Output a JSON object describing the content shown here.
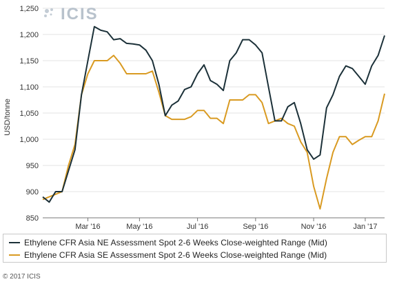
{
  "logo": {
    "text": "ICIS"
  },
  "copyright": "© 2017 ICIS",
  "chart_data": {
    "type": "line",
    "title": "",
    "ylabel": "USD/tonne",
    "xlabel": "",
    "ylim": [
      850,
      1250
    ],
    "yticks": [
      850,
      900,
      950,
      1000,
      1050,
      1100,
      1150,
      1200,
      1250
    ],
    "ytick_labels": [
      "850",
      "900",
      "950",
      "1,000",
      "1,050",
      "1,100",
      "1,150",
      "1,200",
      "1,250"
    ],
    "xtick_labels": [
      "Mar '16",
      "May '16",
      "Jul '16",
      "Sep '16",
      "Nov '16",
      "Jan '17"
    ],
    "xtick_index": [
      7,
      15,
      24,
      33,
      42,
      50
    ],
    "grid": "horizontal",
    "legend_position": "bottom",
    "series": [
      {
        "name": "Ethylene CFR Asia NE Assessment Spot 2-6 Weeks Close-weighted Range (Mid)",
        "color": "#1b3038",
        "values": [
          890,
          880,
          900,
          900,
          940,
          980,
          1085,
          1150,
          1215,
          1208,
          1205,
          1190,
          1192,
          1183,
          1182,
          1180,
          1170,
          1150,
          1105,
          1045,
          1065,
          1073,
          1095,
          1100,
          1125,
          1142,
          1112,
          1105,
          1093,
          1150,
          1165,
          1190,
          1190,
          1180,
          1165,
          1100,
          1035,
          1035,
          1062,
          1070,
          1030,
          980,
          962,
          970,
          1060,
          1085,
          1120,
          1140,
          1135,
          1120,
          1105,
          1140,
          1160,
          1198
        ]
      },
      {
        "name": "Ethylene CFR Asia SE Assessment Spot 2-6 Weeks Close-weighted Range (Mid)",
        "color": "#d99a21",
        "values": [
          885,
          890,
          895,
          900,
          950,
          990,
          1085,
          1125,
          1150,
          1150,
          1150,
          1160,
          1145,
          1125,
          1125,
          1125,
          1125,
          1130,
          1090,
          1045,
          1038,
          1038,
          1038,
          1043,
          1055,
          1055,
          1040,
          1040,
          1030,
          1075,
          1075,
          1075,
          1085,
          1085,
          1070,
          1030,
          1035,
          1040,
          1030,
          1025,
          995,
          975,
          910,
          867,
          925,
          975,
          1005,
          1005,
          990,
          998,
          1005,
          1005,
          1035,
          1087
        ]
      }
    ]
  }
}
